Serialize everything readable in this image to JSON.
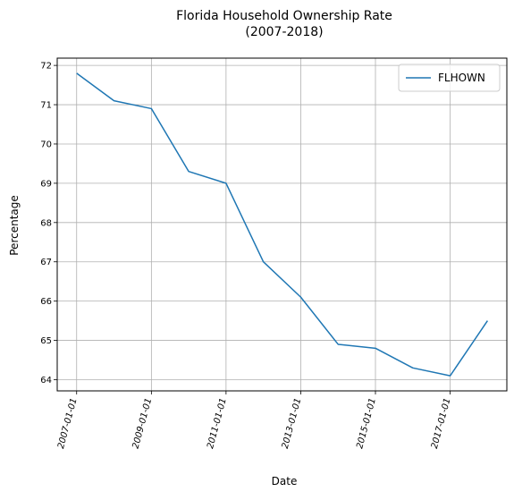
{
  "chart_data": {
    "type": "line",
    "title": "Florida Household Ownership Rate",
    "subtitle": "(2007-2018)",
    "xlabel": "Date",
    "ylabel": "Percentage",
    "x": [
      "2007-01-01",
      "2008-01-01",
      "2009-01-01",
      "2010-01-01",
      "2011-01-01",
      "2012-01-01",
      "2013-01-01",
      "2014-01-01",
      "2015-01-01",
      "2016-01-01",
      "2017-01-01",
      "2018-01-01"
    ],
    "series": [
      {
        "name": "FLHOWN",
        "color": "#1f77b4",
        "values": [
          71.8,
          71.1,
          70.9,
          69.3,
          69.0,
          67.0,
          66.1,
          64.9,
          64.8,
          64.3,
          64.1,
          65.5
        ]
      }
    ],
    "x_tick_labels": [
      "2007-01-01",
      "2009-01-01",
      "2011-01-01",
      "2013-01-01",
      "2015-01-01",
      "2017-01-01"
    ],
    "y_ticks": [
      64,
      65,
      66,
      67,
      68,
      69,
      70,
      71,
      72
    ],
    "xlim": [
      "2006-06-25",
      "2018-07-09"
    ],
    "ylim": [
      63.715,
      72.185
    ],
    "grid": true,
    "legend_position": "top-right",
    "grid_color": "#b0b0b0"
  }
}
